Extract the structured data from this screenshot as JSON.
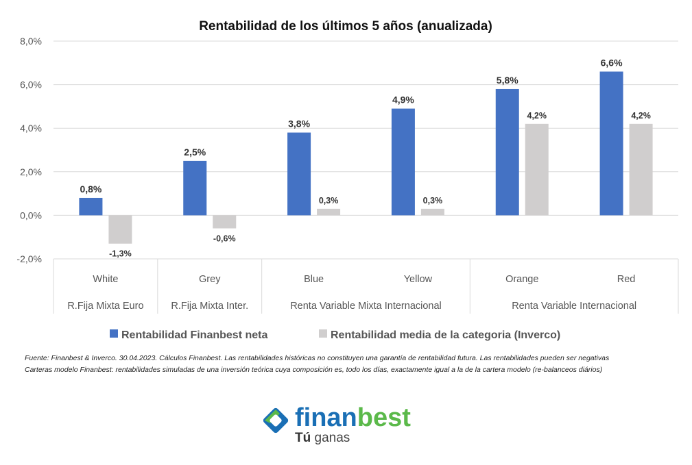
{
  "chart_data": {
    "type": "bar",
    "title": "Rentabilidad de los últimos 5 años (anualizada)",
    "categories": [
      "White",
      "Grey",
      "Blue",
      "Yellow",
      "Orange",
      "Red"
    ],
    "groups": [
      {
        "label": "R.Fija Mixta Euro",
        "categories": [
          "White"
        ]
      },
      {
        "label": "R.Fija Mixta Inter.",
        "categories": [
          "Grey"
        ]
      },
      {
        "label": "Renta Variable Mixta Internacional",
        "categories": [
          "Blue",
          "Yellow"
        ]
      },
      {
        "label": "Renta Variable Internacional",
        "categories": [
          "Orange",
          "Red"
        ]
      }
    ],
    "series": [
      {
        "name": "Rentabilidad Finanbest neta",
        "color": "#4472c4",
        "values": [
          0.8,
          2.5,
          3.8,
          4.9,
          5.8,
          6.6
        ],
        "labels": [
          "0,8%",
          "2,5%",
          "3,8%",
          "4,9%",
          "5,8%",
          "6,6%"
        ]
      },
      {
        "name": "Rentabilidad media de la categoria (Inverco)",
        "color": "#d0cece",
        "values": [
          -1.3,
          -0.6,
          0.3,
          0.3,
          4.2,
          4.2
        ],
        "labels": [
          "-1,3%",
          "-0,6%",
          "0,3%",
          "0,3%",
          "4,2%",
          "4,2%"
        ]
      }
    ],
    "ylim": [
      -2,
      8
    ],
    "yticks": [
      -2,
      0,
      2,
      4,
      6,
      8
    ],
    "ytick_labels": [
      "-2,0%",
      "0,0%",
      "2,0%",
      "4,0%",
      "6,0%",
      "8,0%"
    ],
    "grid": true,
    "legend_position": "bottom"
  },
  "notes": [
    "Fuente: Finanbest & Inverco. 30.04.2023. Cálculos Finanbest. Las rentabilidades históricas no constituyen una garantía de rentabilidad futura. Las rentabilidades pueden ser negativas",
    "Carteras modelo Finanbest: rentabilidades simuladas de una inversión teórica cuya composición es, todo los días, exactamente igual a la de la cartera modelo (re-balanceos diários)"
  ],
  "logo": {
    "name_part1": "finan",
    "name_part2": "best",
    "tagline_bold": "Tú",
    "tagline_rest": " ganas",
    "blue": "#1a6fb5",
    "green": "#5bb94a"
  }
}
